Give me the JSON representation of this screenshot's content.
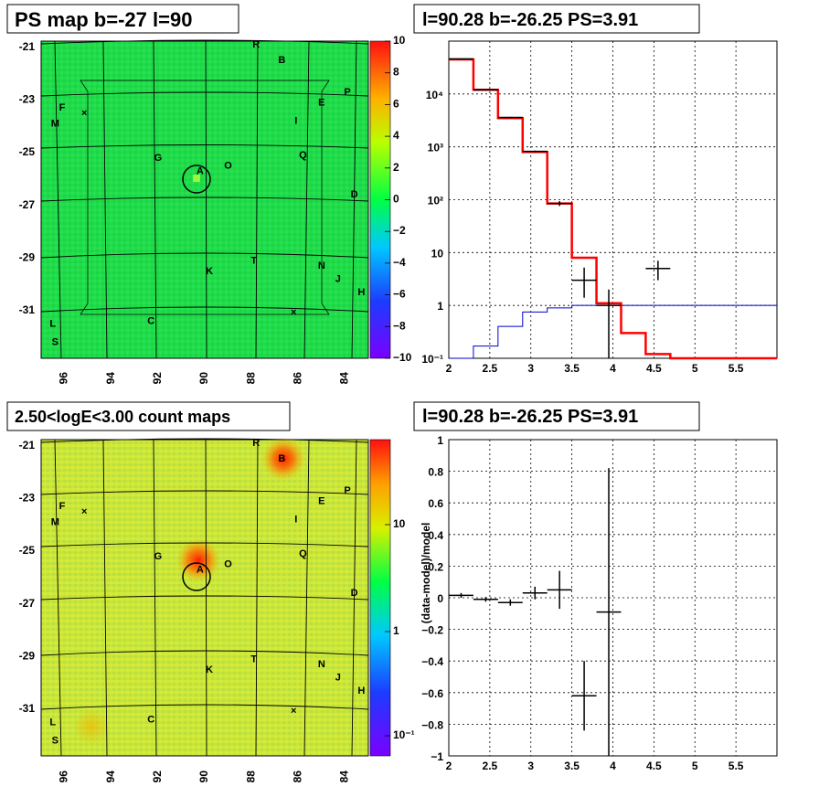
{
  "panels": {
    "ps_map": {
      "title": "PS map b=-27 l=90",
      "y_ticks": [
        "-21",
        "-23",
        "-25",
        "-27",
        "-29",
        "-31"
      ],
      "x_ticks": [
        "96",
        "94",
        "92",
        "90",
        "88",
        "86",
        "84"
      ],
      "colorbar_ticks": [
        "10",
        "8",
        "6",
        "4",
        "2",
        "0",
        "−2",
        "−4",
        "−6",
        "−8",
        "−10"
      ],
      "colors": {
        "background": "#22dd4c",
        "outer": "#2ee256"
      }
    },
    "count_map": {
      "title": "2.50<logE<3.00 count maps",
      "y_ticks": [
        "-21",
        "-23",
        "-25",
        "-27",
        "-29",
        "-31"
      ],
      "x_ticks": [
        "96",
        "94",
        "92",
        "90",
        "88",
        "86",
        "84"
      ],
      "colorbar_ticks": [
        "10",
        "1",
        "10⁻¹"
      ],
      "colors": {
        "background": "#cfe83a",
        "hot": "#ff2a00"
      }
    },
    "spectrum": {
      "title": "l=90.28 b=-26.25 PS=3.91"
    },
    "residual": {
      "title": "l=90.28 b=-26.25 PS=3.91"
    },
    "source_labels": [
      "R",
      "B",
      "P",
      "F",
      "E",
      "M",
      "I",
      "G",
      "A",
      "O",
      "Q",
      "D",
      "T",
      "K",
      "N",
      "J",
      "H",
      "L",
      "C",
      "S"
    ]
  },
  "chart_data": [
    {
      "type": "heatmap",
      "title": "PS map b=-27 l=90",
      "xlabel": "",
      "ylabel": "",
      "xlim": [
        97,
        83
      ],
      "ylim": [
        -32.8,
        -20.8
      ],
      "zlim": [
        -10,
        10
      ],
      "colorbar_ticks": [
        10,
        8,
        6,
        4,
        2,
        0,
        -2,
        -4,
        -6,
        -8,
        -10
      ],
      "peak": {
        "l": 90.28,
        "b": -26.25,
        "value": 3.91
      },
      "sources": [
        {
          "name": "R",
          "l": 87.8,
          "b": -20.9
        },
        {
          "name": "B",
          "l": 86.7,
          "b": -21.5
        },
        {
          "name": "P",
          "l": 83.9,
          "b": -22.7
        },
        {
          "name": "F",
          "l": 96.1,
          "b": -23.3
        },
        {
          "name": "E",
          "l": 85.0,
          "b": -23.1
        },
        {
          "name": "M",
          "l": 96.4,
          "b": -23.9
        },
        {
          "name": "I",
          "l": 86.1,
          "b": -23.8
        },
        {
          "name": "G",
          "l": 92.0,
          "b": -25.2
        },
        {
          "name": "A",
          "l": 90.2,
          "b": -25.7
        },
        {
          "name": "O",
          "l": 89.0,
          "b": -25.5
        },
        {
          "name": "Q",
          "l": 85.8,
          "b": -25.1
        },
        {
          "name": "D",
          "l": 83.6,
          "b": -26.6
        },
        {
          "name": "T",
          "l": 87.9,
          "b": -29.1
        },
        {
          "name": "K",
          "l": 89.8,
          "b": -29.5
        },
        {
          "name": "N",
          "l": 85.0,
          "b": -29.3
        },
        {
          "name": "J",
          "l": 84.3,
          "b": -29.8
        },
        {
          "name": "H",
          "l": 83.3,
          "b": -30.3
        },
        {
          "name": "L",
          "l": 96.5,
          "b": -31.5
        },
        {
          "name": "C",
          "l": 92.3,
          "b": -31.4
        },
        {
          "name": "S",
          "l": 96.4,
          "b": -32.2
        }
      ]
    },
    {
      "type": "line",
      "title": "l=90.28 b=-26.25 PS=3.91",
      "xlabel": "",
      "ylabel": "",
      "xlim": [
        2.0,
        6.0
      ],
      "ylim": [
        0.1,
        100000
      ],
      "y_scale": "log",
      "x_ticks": [
        2,
        2.5,
        3,
        3.5,
        4,
        4.5,
        5,
        5.5
      ],
      "y_ticks": [
        0.1,
        1,
        10,
        100,
        1000,
        10000
      ],
      "y_tick_labels": [
        "10⁻¹",
        "1",
        "10",
        "10²",
        "10³",
        "10⁴"
      ],
      "series": [
        {
          "style": "step",
          "color": "#ff0000",
          "edges": [
            2.0,
            2.3,
            2.6,
            2.9,
            3.2,
            3.5,
            3.8,
            4.1,
            4.4,
            4.7,
            5.0,
            5.3,
            5.6,
            6.0
          ],
          "values": [
            45000,
            12000,
            3500,
            800,
            85,
            8,
            1.1,
            0.3,
            0.12,
            0.1,
            0.1,
            0.1,
            0.1
          ]
        },
        {
          "style": "step",
          "color": "#0000cc",
          "edges": [
            2.0,
            2.3,
            2.6,
            2.9,
            3.2,
            3.5,
            3.8,
            4.1,
            4.4,
            4.7,
            5.0,
            5.3,
            5.6,
            6.0
          ],
          "values": [
            0.1,
            0.17,
            0.4,
            0.75,
            0.9,
            1.0,
            1.0,
            1.0,
            1.0,
            1.0,
            1.0,
            1.0,
            1.0
          ]
        },
        {
          "style": "errorbar",
          "color": "#000000",
          "points": [
            {
              "x": 2.15,
              "y": 46000,
              "xerr": 0.15,
              "ylo": 45000,
              "yhi": 47000
            },
            {
              "x": 2.45,
              "y": 12000,
              "xerr": 0.15,
              "ylo": 11800,
              "yhi": 12200
            },
            {
              "x": 2.75,
              "y": 3600,
              "xerr": 0.15,
              "ylo": 3500,
              "yhi": 3700
            },
            {
              "x": 3.05,
              "y": 820,
              "xerr": 0.15,
              "ylo": 790,
              "yhi": 850
            },
            {
              "x": 3.35,
              "y": 85,
              "xerr": 0.15,
              "ylo": 76,
              "yhi": 94
            },
            {
              "x": 3.65,
              "y": 3,
              "xerr": 0.15,
              "ylo": 1.4,
              "yhi": 5.2
            },
            {
              "x": 3.95,
              "y": 1,
              "xerr": 0.15,
              "ylo": 0.1,
              "yhi": 2
            },
            {
              "x": 4.55,
              "y": 5,
              "xerr": 0.15,
              "ylo": 3,
              "yhi": 7
            }
          ]
        }
      ]
    },
    {
      "type": "scatter",
      "title": "l=90.28 b=-26.25 PS=3.91",
      "xlabel": "",
      "ylabel": "(data-model)/model",
      "xlim": [
        2.0,
        6.0
      ],
      "ylim": [
        -1,
        1
      ],
      "x_ticks": [
        2,
        2.5,
        3,
        3.5,
        4,
        4.5,
        5,
        5.5
      ],
      "y_ticks": [
        -1,
        -0.8,
        -0.6,
        -0.4,
        -0.2,
        0,
        0.2,
        0.4,
        0.6,
        0.8,
        1
      ],
      "points": [
        {
          "x": 2.15,
          "y": 0.015,
          "xerr": 0.15,
          "yerr": 0.015
        },
        {
          "x": 2.45,
          "y": -0.01,
          "xerr": 0.15,
          "yerr": 0.015
        },
        {
          "x": 2.75,
          "y": -0.03,
          "xerr": 0.15,
          "yerr": 0.02
        },
        {
          "x": 3.05,
          "y": 0.03,
          "xerr": 0.15,
          "yerr": 0.04
        },
        {
          "x": 3.35,
          "y": 0.05,
          "xerr": 0.15,
          "yerr": 0.12
        },
        {
          "x": 3.65,
          "y": -0.62,
          "xerr": 0.15,
          "yerr": 0.22
        },
        {
          "x": 3.95,
          "y": -0.09,
          "xerr": 0.15,
          "yerr": 0.91
        }
      ]
    }
  ]
}
